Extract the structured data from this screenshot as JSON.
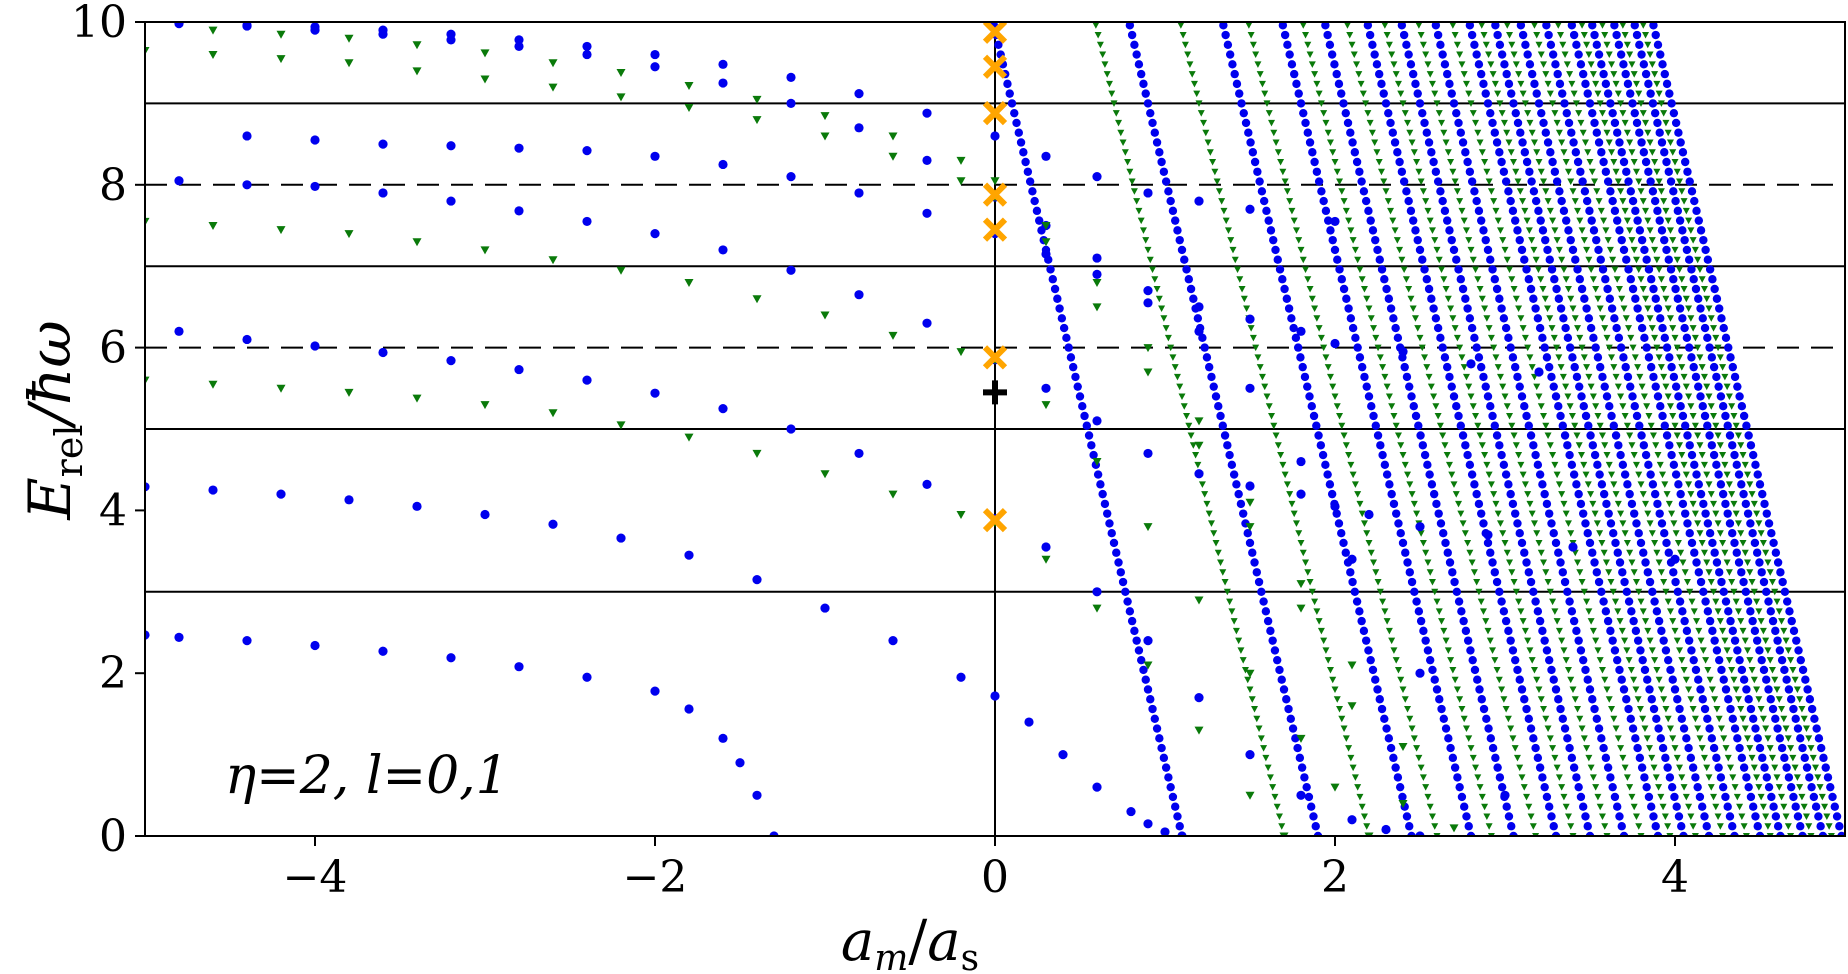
{
  "chart_data": {
    "type": "scatter",
    "title": "",
    "xlabel": "a_m/a_s",
    "xlabel_parts": {
      "a": "a",
      "sub_m": "m",
      "slash": "/",
      "b": "a",
      "sub_s": "s"
    },
    "ylabel": "E_rel/ħω",
    "ylabel_parts": {
      "E": "E",
      "sub": "rel",
      "rest": "/ħω"
    },
    "xlim": [
      -5,
      5
    ],
    "ylim": [
      0,
      10
    ],
    "xticks": [
      -4,
      -2,
      0,
      2,
      4
    ],
    "xtick_labels": [
      "−4",
      "−2",
      "0",
      "2",
      "4"
    ],
    "yticks": [
      0,
      2,
      4,
      6,
      8,
      10
    ],
    "ytick_labels": [
      "0",
      "2",
      "4",
      "6",
      "8",
      "10"
    ],
    "annotation": "η=2, l=0,1",
    "reference_lines": {
      "solid_horizontal": [
        3,
        5,
        7,
        9
      ],
      "dashed_horizontal": [
        6,
        8
      ],
      "vertical": [
        0
      ]
    },
    "colors": {
      "series_l0": "#0000ee",
      "series_l1": "#0a7a0a",
      "orange_markers": "#ffa500",
      "black_marker": "#000000",
      "lines": "#000000"
    },
    "series": [
      {
        "marker": "circle",
        "color": "#0000ee",
        "x": [
          -5,
          -4.8,
          -4.4,
          -4,
          -3.6,
          -3.2,
          -2.8,
          -2.4,
          -2,
          -1.8,
          -1.6,
          -1.5,
          -1.4,
          -1.3,
          -5,
          -4.6,
          -4.2,
          -3.8,
          -3.4,
          -3,
          -2.6,
          -2.2,
          -1.8,
          -1.4,
          -1,
          -0.6,
          -0.2,
          0,
          0.2,
          0.4,
          0.6,
          0.8,
          0.9,
          1.0,
          1.1,
          -4.8,
          -4.4,
          -4,
          -3.6,
          -3.2,
          -2.8,
          -2.4,
          -2,
          -1.6,
          -1.2,
          -0.8,
          -0.4,
          0,
          0.3,
          0.6,
          0.9,
          1.2,
          1.5,
          1.8,
          2.1,
          2.3,
          2.5,
          -4.8,
          -4.4,
          -4,
          -3.6,
          -3.2,
          -2.8,
          -2.4,
          -2,
          -1.6,
          -1.2,
          -0.8,
          -0.4,
          0,
          0.3,
          0.6,
          0.9,
          1.2,
          1.5,
          1.8,
          2.0,
          2.2,
          2.5,
          2.9,
          3.4,
          4.0,
          -4.8,
          -4.4,
          -4,
          -3.6,
          -3.2,
          -2.8,
          -2.4,
          -2,
          -1.6,
          -1.2,
          -0.8,
          -0.4,
          0,
          0.3,
          0.6,
          0.9,
          1.2,
          1.5,
          1.8,
          2.0,
          2.4,
          2.8,
          3.2,
          -4.4,
          -4,
          -3.6,
          -3.2,
          -2.8,
          -2.4,
          -2,
          -1.6,
          -1.2,
          -0.8,
          -0.4,
          0,
          0.3,
          0.6,
          0.9,
          1.2,
          1.5,
          1.8,
          2.1,
          2.5,
          3.0,
          -4.8,
          -4.4,
          -4,
          -3.6,
          -3.2,
          -2.8,
          -2.4,
          -2,
          -1.6,
          -1.2,
          -0.8,
          -0.4,
          0,
          0.3,
          0.6,
          0.9,
          1.2,
          1.5,
          2.0
        ],
        "y": [
          2.47,
          2.44,
          2.4,
          2.34,
          2.27,
          2.19,
          2.08,
          1.95,
          1.78,
          1.56,
          1.2,
          0.9,
          0.5,
          0.0,
          4.29,
          4.25,
          4.2,
          4.13,
          4.05,
          3.95,
          3.83,
          3.66,
          3.45,
          3.15,
          2.8,
          2.4,
          1.95,
          1.72,
          1.4,
          1.0,
          0.6,
          0.3,
          0.15,
          0.05,
          0.0,
          6.2,
          6.1,
          6.02,
          5.94,
          5.84,
          5.73,
          5.6,
          5.44,
          5.25,
          5.0,
          4.7,
          4.32,
          3.9,
          3.55,
          3.0,
          2.4,
          1.7,
          1.0,
          0.5,
          0.2,
          0.08,
          0.0,
          8.05,
          8.0,
          7.98,
          7.9,
          7.8,
          7.68,
          7.55,
          7.4,
          7.2,
          6.95,
          6.65,
          6.3,
          5.85,
          5.5,
          5.1,
          4.7,
          4.45,
          4.3,
          4.2,
          4.05,
          3.95,
          3.8,
          3.7,
          3.55,
          3.4,
          10.0,
          9.95,
          9.9,
          9.85,
          9.78,
          9.7,
          9.6,
          9.45,
          9.25,
          9.0,
          8.7,
          8.3,
          7.85,
          7.5,
          7.1,
          6.7,
          6.5,
          6.35,
          6.2,
          6.05,
          5.95,
          5.8,
          5.7,
          8.6,
          8.55,
          8.5,
          8.48,
          8.45,
          8.42,
          8.35,
          8.25,
          8.1,
          7.9,
          7.65,
          7.4,
          7.15,
          6.9,
          6.55,
          6.2,
          5.5,
          4.6,
          3.4,
          2.0,
          0.5,
          9.98,
          9.96,
          9.94,
          9.9,
          9.85,
          9.78,
          9.7,
          9.6,
          9.48,
          9.32,
          9.12,
          8.88,
          8.6,
          8.35,
          8.1,
          7.9,
          7.8,
          7.7,
          7.55
        ]
      },
      {
        "marker": "triangle-down",
        "color": "#0a7a0a",
        "x": [
          -5,
          -4.6,
          -4.2,
          -3.8,
          -3.4,
          -3,
          -2.6,
          -2.2,
          -1.8,
          -1.4,
          -1,
          -0.6,
          -0.2,
          0,
          0.3,
          0.6,
          0.9,
          1.2,
          1.5,
          1.7,
          -5,
          -4.6,
          -4.2,
          -3.8,
          -3.4,
          -3,
          -2.6,
          -2.2,
          -1.8,
          -1.4,
          -1,
          -0.6,
          -0.2,
          0,
          0.3,
          0.6,
          0.9,
          1.2,
          1.5,
          1.8,
          2.0,
          2.2,
          -5,
          -4.6,
          -4.2,
          -3.8,
          -3.4,
          -3,
          -2.6,
          -2.2,
          -1.8,
          -1.4,
          -1,
          -0.6,
          -0.2,
          0,
          0.3,
          0.6,
          0.9,
          1.2,
          1.5,
          1.8,
          2.1,
          2.4,
          -4.6,
          -4.2,
          -3.8,
          -3.4,
          -3,
          -2.6,
          -2.2,
          -1.8,
          -1.4,
          -1,
          -0.6,
          -0.2,
          0,
          0.3,
          0.6,
          0.9,
          1.2,
          1.5,
          1.8,
          2.1,
          2.4,
          2.7
        ],
        "y": [
          5.6,
          5.55,
          5.5,
          5.45,
          5.38,
          5.3,
          5.2,
          5.05,
          4.9,
          4.7,
          4.45,
          4.2,
          3.95,
          3.85,
          3.4,
          2.8,
          2.1,
          1.3,
          0.5,
          0.0,
          7.55,
          7.5,
          7.45,
          7.4,
          7.3,
          7.2,
          7.08,
          6.95,
          6.8,
          6.6,
          6.4,
          6.15,
          5.95,
          5.85,
          5.3,
          4.6,
          3.8,
          2.9,
          2.0,
          1.2,
          0.6,
          0.0,
          9.65,
          9.6,
          9.55,
          9.5,
          9.4,
          9.3,
          9.2,
          9.08,
          8.95,
          8.8,
          8.6,
          8.35,
          8.05,
          7.85,
          7.3,
          6.5,
          5.7,
          4.8,
          3.8,
          2.8,
          1.6,
          0.4,
          9.9,
          9.85,
          9.8,
          9.72,
          9.62,
          9.5,
          9.38,
          9.22,
          9.05,
          8.85,
          8.6,
          8.3,
          8.05,
          7.5,
          6.8,
          6.0,
          5.1,
          4.1,
          3.1,
          2.1,
          1.1,
          0.1
        ]
      }
    ],
    "markers_x_orange": [
      {
        "x": 0,
        "y": 3.88
      },
      {
        "x": 0,
        "y": 5.88
      },
      {
        "x": 0,
        "y": 7.45
      },
      {
        "x": 0,
        "y": 7.88
      },
      {
        "x": 0,
        "y": 8.88
      },
      {
        "x": 0,
        "y": 9.45
      },
      {
        "x": 0,
        "y": 9.88
      }
    ],
    "marker_plus_black": {
      "x": 0,
      "y": 5.45
    },
    "steep_branches": {
      "blue_x_at_y0": [
        1.1,
        1.9,
        2.45,
        2.8,
        3.05,
        3.3,
        3.5,
        3.7,
        3.9,
        4.05,
        4.2,
        4.35,
        4.5,
        4.62,
        4.75,
        4.87,
        4.98
      ],
      "green_x_at_y0": [
        1.7,
        2.2,
        2.6,
        2.92,
        3.18,
        3.4,
        3.6,
        3.8,
        3.97,
        4.12,
        4.28,
        4.42,
        4.56,
        4.68,
        4.8,
        4.92
      ],
      "slope_dE_dx": -9.0
    }
  }
}
